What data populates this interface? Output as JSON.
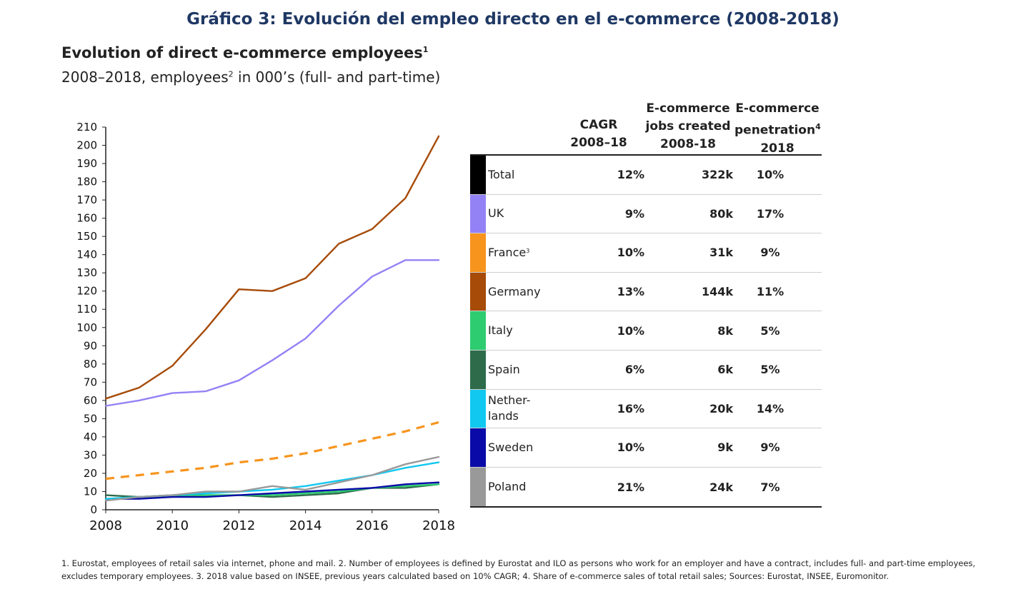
{
  "page_title": "Gráfico 3: Evolución del empleo directo en el e-commerce (2008-2018)",
  "chart_title": "Evolution of direct e-commerce employees",
  "chart_title_sup": "1",
  "subtitle_a": "2008–2018, employees",
  "subtitle_sup": "2",
  "subtitle_b": " in 000’s (full- and part-time)",
  "table": {
    "headers": {
      "cagr": [
        "CAGR",
        "2008–18"
      ],
      "jobs": [
        "E-commerce",
        "jobs created",
        "2008-18"
      ],
      "penetration": [
        "E-commerce",
        "penetration",
        "2018"
      ],
      "penetration_sup": "4"
    },
    "rows": [
      {
        "name": "Total",
        "sup": "",
        "color": "#000000",
        "cagr": "12%",
        "jobs": "322k",
        "penetration": "10%"
      },
      {
        "name": "UK",
        "sup": "",
        "color": "#9382f5",
        "cagr": "9%",
        "jobs": "80k",
        "penetration": "17%"
      },
      {
        "name": "France",
        "sup": "3",
        "color": "#f7941d",
        "cagr": "10%",
        "jobs": "31k",
        "penetration": "9%"
      },
      {
        "name": "Germany",
        "sup": "",
        "color": "#a64b08",
        "cagr": "13%",
        "jobs": "144k",
        "penetration": "11%"
      },
      {
        "name": "Italy",
        "sup": "",
        "color": "#2ecc71",
        "cagr": "10%",
        "jobs": "8k",
        "penetration": "5%"
      },
      {
        "name": "Spain",
        "sup": "",
        "color": "#2e6b4a",
        "cagr": "6%",
        "jobs": "6k",
        "penetration": "5%"
      },
      {
        "name": "Nether-\nlands",
        "sup": "",
        "color": "#11c8f0",
        "cagr": "16%",
        "jobs": "20k",
        "penetration": "14%"
      },
      {
        "name": "Sweden",
        "sup": "",
        "color": "#0a0aa8",
        "cagr": "10%",
        "jobs": "9k",
        "penetration": "9%"
      },
      {
        "name": "Poland",
        "sup": "",
        "color": "#999999",
        "cagr": "21%",
        "jobs": "24k",
        "penetration": "7%"
      }
    ]
  },
  "chart_data": {
    "type": "line",
    "title": "Evolution of direct e-commerce employees",
    "subtitle": "2008–2018, employees in 000’s (full- and part-time)",
    "x": [
      2008,
      2009,
      2010,
      2011,
      2012,
      2013,
      2014,
      2015,
      2016,
      2017,
      2018
    ],
    "x_ticks": [
      2008,
      2010,
      2012,
      2014,
      2016,
      2018
    ],
    "ylim": [
      0,
      210
    ],
    "y_ticks": [
      0,
      10,
      20,
      30,
      40,
      50,
      60,
      70,
      80,
      90,
      100,
      110,
      120,
      130,
      140,
      150,
      160,
      170,
      180,
      190,
      200,
      210
    ],
    "grid": false,
    "series": [
      {
        "name": "Germany",
        "color": "#a64b08",
        "dashed": false,
        "values": [
          61,
          67,
          79,
          99,
          121,
          120,
          127,
          146,
          154,
          171,
          205
        ]
      },
      {
        "name": "UK",
        "color": "#9382f5",
        "dashed": false,
        "values": [
          57,
          60,
          64,
          65,
          71,
          82,
          94,
          112,
          128,
          137,
          137
        ]
      },
      {
        "name": "France",
        "color": "#f7941d",
        "dashed": true,
        "values": [
          17,
          19,
          21,
          23,
          26,
          28,
          31,
          35,
          39,
          43,
          48
        ]
      },
      {
        "name": "Poland",
        "color": "#999999",
        "dashed": false,
        "values": [
          5,
          7,
          8,
          10,
          10,
          13,
          11,
          15,
          19,
          25,
          29
        ]
      },
      {
        "name": "Netherlands",
        "color": "#11c8f0",
        "dashed": false,
        "values": [
          6,
          7,
          8,
          9,
          10,
          11,
          13,
          16,
          19,
          23,
          26
        ]
      },
      {
        "name": "Sweden",
        "color": "#0a0aa8",
        "dashed": false,
        "values": [
          6,
          6,
          7,
          7,
          8,
          9,
          10,
          11,
          12,
          14,
          15
        ]
      },
      {
        "name": "Italy",
        "color": "#2ecc71",
        "dashed": false,
        "values": [
          6,
          7,
          7,
          8,
          8,
          8,
          9,
          10,
          12,
          13,
          14
        ]
      },
      {
        "name": "Spain",
        "color": "#2e6b4a",
        "dashed": false,
        "values": [
          8,
          7,
          8,
          8,
          8,
          7,
          8,
          9,
          12,
          12,
          14
        ]
      }
    ]
  },
  "footnote": "1. Eurostat, employees of retail sales via internet, phone and mail. 2. Number of employees is defined by Eurostat and ILO as persons who work for an employer and have a contract, includes full- and part-time employees, excludes temporary employees. 3. 2018 value based on INSEE, previous years calculated based on 10% CAGR; 4. Share of e-commerce sales of total retail sales; Sources: Eurostat, INSEE, Euromonitor."
}
